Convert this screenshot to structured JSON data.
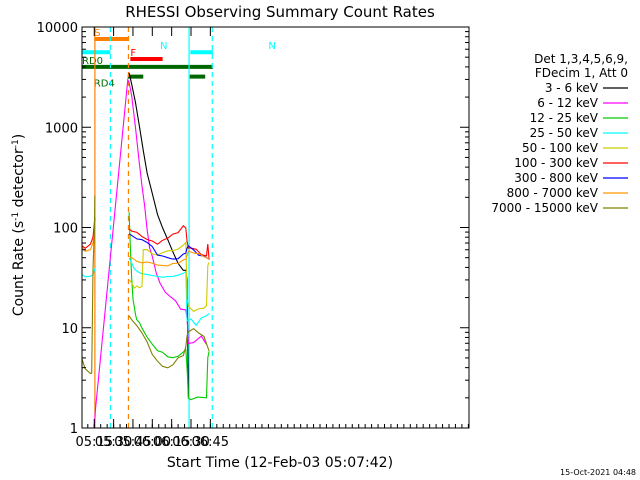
{
  "chart_data": {
    "type": "line",
    "title": "RHESSI Observing Summary Count Rates",
    "xlabel": "Start Time (12-Feb-03 05:07:42)",
    "ylabel_main": "Count Rate (s",
    "ylabel_sup1": "-1",
    "ylabel_mid": " detector",
    "ylabel_sup2": "-1",
    "ylabel_end": ")",
    "yscale": "log",
    "ylim": [
      1,
      10000
    ],
    "xlim_minutes": [
      5.5,
      305.5
    ],
    "y_ticks": [
      {
        "value": 1,
        "label": "1"
      },
      {
        "value": 10,
        "label": "10"
      },
      {
        "value": 100,
        "label": "100"
      },
      {
        "value": 1000,
        "label": "1000"
      },
      {
        "value": 10000,
        "label": "10000"
      }
    ],
    "x_ticks": [
      {
        "minute": 15,
        "label": "05:15"
      },
      {
        "minute": 30,
        "label": "05:30"
      },
      {
        "minute": 45,
        "label": "05:45"
      },
      {
        "minute": 60,
        "label": "06:00"
      },
      {
        "minute": 75,
        "label": "06:15"
      },
      {
        "minute": 90,
        "label": "06:30"
      },
      {
        "minute": 105,
        "label": "06:45"
      }
    ],
    "legend_header": [
      "Det 1,3,4,5,6,9,",
      "FDecim 1, Att 0"
    ],
    "series": [
      {
        "name": "3 - 6 keV",
        "color": "#000000",
        "x": [
          5.5,
          15.5,
          41,
          42,
          44,
          47,
          50,
          53,
          56,
          60,
          64,
          68,
          72,
          76,
          80,
          84,
          86,
          87,
          88
        ],
        "y": [
          null,
          null,
          null,
          3500,
          2700,
          1700,
          1000,
          580,
          350,
          210,
          140,
          100,
          75,
          56,
          45,
          38,
          36,
          30,
          2
        ]
      },
      {
        "name": "6 - 12 keV",
        "color": "#ff00ff",
        "x": [
          15,
          16,
          41,
          42,
          44,
          47,
          50,
          52,
          54,
          56,
          58,
          60,
          63,
          66,
          70,
          74,
          78,
          82,
          86,
          87,
          88,
          92,
          98,
          102
        ],
        "y": [
          1,
          1.5,
          3000,
          2800,
          2000,
          950,
          450,
          270,
          160,
          95,
          65,
          50,
          35,
          28,
          23,
          20,
          18,
          16,
          15,
          12,
          7,
          7,
          8,
          7
        ]
      },
      {
        "name": "12 - 25 keV",
        "color": "#00cc00",
        "x": [
          41,
          42,
          43,
          44,
          45,
          46,
          47,
          48,
          50,
          52,
          56,
          60,
          64,
          68,
          72,
          76,
          80,
          84,
          86,
          87,
          88,
          90,
          95,
          100,
          102,
          103,
          104
        ],
        "y": [
          null,
          140,
          60,
          30,
          20,
          16,
          14,
          12,
          11,
          10,
          8,
          7,
          6,
          5.5,
          5,
          5,
          5,
          5.5,
          6,
          4,
          2,
          2,
          2,
          2,
          2,
          5,
          6
        ]
      },
      {
        "name": "25 - 50 keV",
        "color": "#00ffff",
        "x": [
          5.5,
          8,
          12,
          14,
          15.5,
          41,
          42,
          44,
          46,
          48,
          50,
          52,
          56,
          60,
          64,
          68,
          72,
          76,
          80,
          84,
          86,
          87,
          88,
          90,
          94,
          98,
          102,
          104
        ],
        "y": [
          34,
          32,
          32,
          33,
          40,
          null,
          48,
          43,
          40,
          38,
          37,
          36,
          35,
          34,
          33,
          32,
          31,
          32,
          33,
          34,
          36,
          12,
          12,
          12,
          11,
          12,
          13,
          14
        ]
      },
      {
        "name": "50 - 100 keV",
        "color": "#cccc00",
        "x": [
          41,
          42,
          44,
          46,
          48,
          50,
          52,
          53,
          56,
          60,
          64,
          68,
          72,
          76,
          80,
          84,
          86,
          87,
          88,
          92,
          96,
          100,
          102,
          103,
          104
        ],
        "y": [
          null,
          30,
          27,
          26,
          26,
          26,
          26,
          60,
          58,
          56,
          55,
          55,
          56,
          57,
          62,
          68,
          72,
          20,
          16,
          15,
          15,
          15,
          16,
          40,
          45
        ]
      },
      {
        "name": "100 - 300 keV",
        "color": "#ff0000",
        "x": [
          5.5,
          8,
          12,
          14,
          15.5,
          41,
          42,
          44,
          48,
          52,
          56,
          60,
          64,
          68,
          72,
          76,
          80,
          84,
          86,
          87,
          88,
          90,
          94,
          98,
          102,
          103,
          104
        ],
        "y": [
          68,
          64,
          66,
          80,
          120,
          null,
          95,
          92,
          86,
          80,
          74,
          72,
          70,
          72,
          76,
          82,
          90,
          100,
          98,
          70,
          62,
          62,
          58,
          55,
          52,
          70,
          47
        ]
      },
      {
        "name": "300 - 800 keV",
        "color": "#0000ff",
        "x": [
          41,
          42,
          44,
          48,
          52,
          56,
          60,
          64,
          68,
          72,
          76,
          80,
          84,
          86,
          87,
          88,
          92,
          96,
          100,
          104
        ],
        "y": [
          null,
          90,
          85,
          78,
          74,
          70,
          62,
          55,
          50,
          48,
          47,
          48,
          52,
          56,
          62,
          65,
          60,
          55,
          52,
          48
        ]
      },
      {
        "name": "800 - 7000 keV",
        "color": "#ff9900",
        "x": [
          5.5,
          8,
          12,
          14,
          15.5,
          41,
          42,
          44,
          48,
          52,
          56,
          60,
          64,
          68,
          72,
          76,
          80,
          84,
          86,
          87,
          88,
          92,
          96,
          100,
          104
        ],
        "y": [
          62,
          60,
          61,
          70,
          100,
          null,
          52,
          50,
          48,
          46,
          45,
          44,
          43,
          43,
          43,
          44,
          46,
          48,
          50,
          52,
          56,
          58,
          55,
          52,
          48
        ]
      },
      {
        "name": "7000 - 15000 keV",
        "color": "#808000",
        "x": [
          5.5,
          8,
          12,
          13,
          14,
          15,
          15.5,
          41,
          42,
          44,
          48,
          52,
          56,
          60,
          64,
          68,
          72,
          76,
          80,
          84,
          86,
          87,
          88,
          92,
          96,
          100,
          104
        ],
        "y": [
          5,
          4,
          3.5,
          3.5,
          40,
          90,
          200,
          null,
          13,
          12,
          11,
          9,
          7,
          5.5,
          4.5,
          4,
          4,
          4.2,
          4.8,
          5.5,
          6.5,
          8,
          9,
          9.5,
          9,
          8,
          6
        ]
      }
    ],
    "flag_bars": [
      {
        "label": "S",
        "color": "#ff8000",
        "x0": 15,
        "x1": 42,
        "level": 7600
      },
      {
        "label": "N",
        "color": "#00ffff",
        "x0": 5.5,
        "x1": 27.5,
        "level": 5600
      },
      {
        "label": "N",
        "color": "#00ffff",
        "x0": 89.5,
        "x1": 107,
        "level": 5600
      },
      {
        "label": "F",
        "color": "#ff0000",
        "x0": 43,
        "x1": 68,
        "level": 4800
      },
      {
        "label": "RD0",
        "color": "#006600",
        "x0": 5.5,
        "x1": 107,
        "level": 4000
      },
      {
        "label": "RD4",
        "color": "#006600",
        "x0": 41,
        "x1": 53,
        "level": 3200
      },
      {
        "label": "",
        "color": "#006600",
        "x0": 89,
        "x1": 101,
        "level": 3200
      }
    ],
    "flag_text": {
      "S": "S",
      "N": "N",
      "F": "F",
      "RD0": "RD0",
      "RD4": "RD4"
    },
    "vlines": [
      {
        "minute": 15.5,
        "color": "#ff8000",
        "style": "solid"
      },
      {
        "minute": 41.5,
        "color": "#ff8000",
        "style": "dashed"
      },
      {
        "minute": 27.5,
        "color": "#00ffff",
        "style": "dashed"
      },
      {
        "minute": 88.5,
        "color": "#00ffff",
        "style": "solid"
      },
      {
        "minute": 106.5,
        "color": "#00ffff",
        "style": "dashed"
      }
    ],
    "timestamp": "15-Oct-2021 04:48"
  }
}
